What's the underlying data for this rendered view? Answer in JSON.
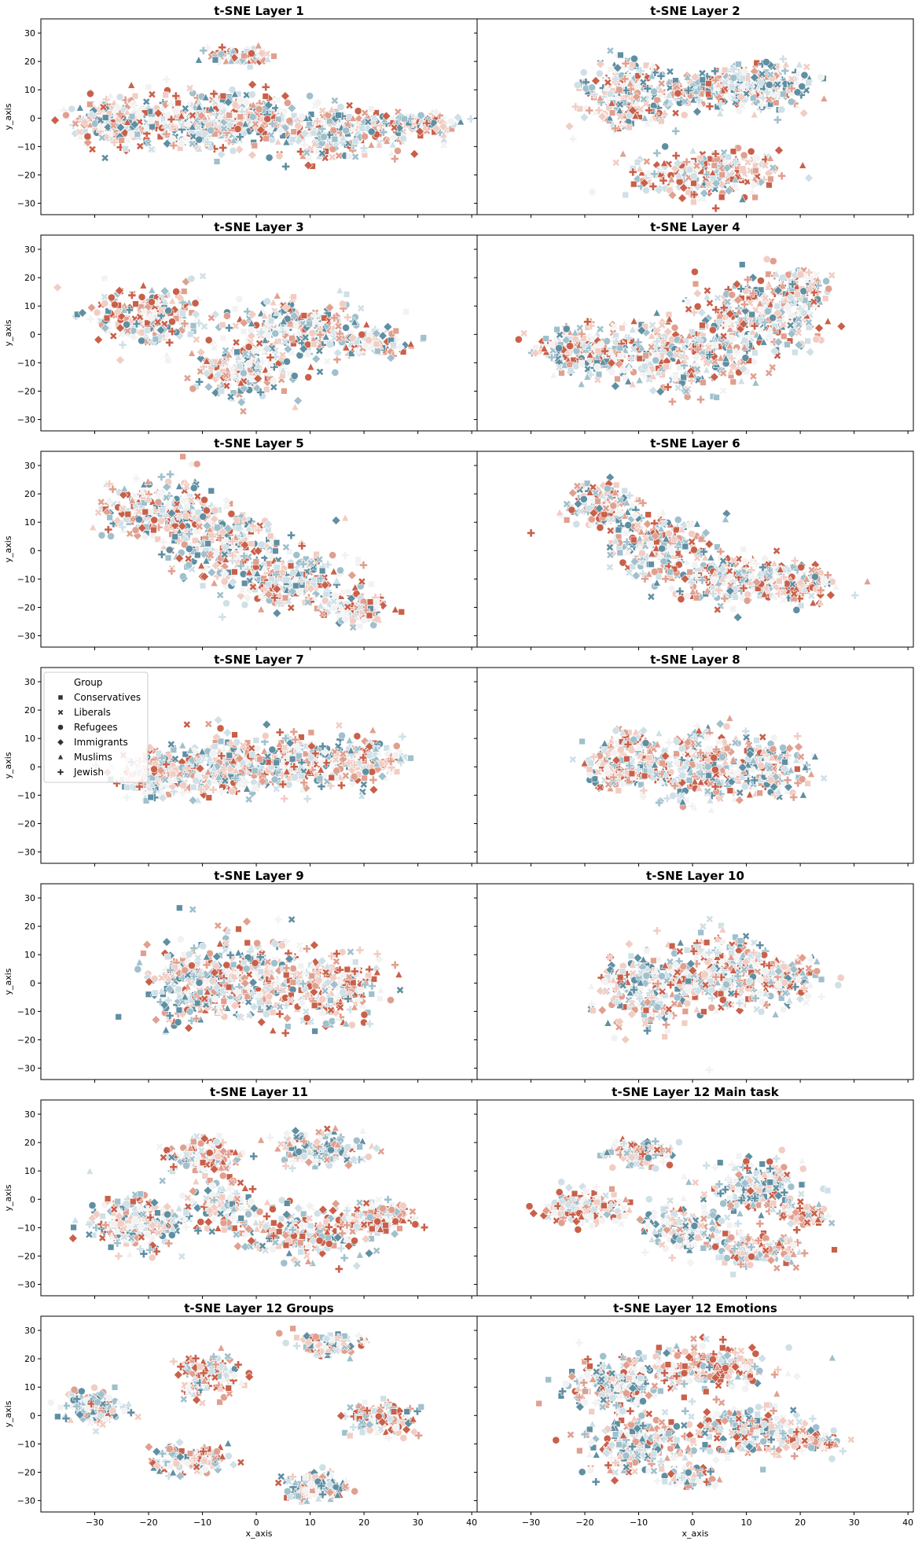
{
  "chart_data": {
    "type": "scatter",
    "layout": {
      "rows": 7,
      "cols": 2,
      "sharex": true,
      "sharey": true
    },
    "xlabel": "x_axis",
    "ylabel": "y_axis",
    "xlim": [
      -40,
      41
    ],
    "ylim": [
      -34,
      35
    ],
    "xticks": [
      -30,
      -20,
      -10,
      0,
      10,
      20,
      30,
      40
    ],
    "yticks": [
      -30,
      -20,
      -10,
      0,
      10,
      20,
      30
    ],
    "palette": [
      "#5f8fa2",
      "#9fc0cc",
      "#cfe0e7",
      "#f2f2f2",
      "#f1cdc3",
      "#e0a090",
      "#c9604a"
    ],
    "legend": {
      "title": "Group",
      "location": "upper-left",
      "panel_index": 6,
      "entries": [
        {
          "label": "Conservatives",
          "marker": "square"
        },
        {
          "label": "Liberals",
          "marker": "x"
        },
        {
          "label": "Refugees",
          "marker": "circle"
        },
        {
          "label": "Immigrants",
          "marker": "diamond"
        },
        {
          "label": "Muslims",
          "marker": "triangle"
        },
        {
          "label": "Jewish",
          "marker": "plus"
        }
      ]
    },
    "panels": [
      {
        "title": "t-SNE Layer 1",
        "clusters": [
          {
            "cx": -25,
            "cy": -1,
            "rx": 10,
            "ry": 8,
            "n": 240,
            "tone": 0
          },
          {
            "cx": -10,
            "cy": -2,
            "rx": 10,
            "ry": 10,
            "n": 260,
            "tone": 0
          },
          {
            "cx": 0,
            "cy": 0,
            "rx": 8,
            "ry": 9,
            "n": 180,
            "tone": 0
          },
          {
            "cx": 15,
            "cy": -5,
            "rx": 12,
            "ry": 9,
            "n": 260,
            "tone": 0
          },
          {
            "cx": 30,
            "cy": -2,
            "rx": 8,
            "ry": 4,
            "n": 90,
            "tone": 0
          },
          {
            "cx": -3,
            "cy": 22,
            "rx": 6,
            "ry": 2.5,
            "n": 70,
            "tone": 0.2
          }
        ]
      },
      {
        "title": "t-SNE Layer 2",
        "clusters": [
          {
            "cx": -12,
            "cy": 8,
            "rx": 9,
            "ry": 11,
            "n": 230,
            "tone": 0
          },
          {
            "cx": 3,
            "cy": 10,
            "rx": 10,
            "ry": 7,
            "n": 200,
            "tone": 0
          },
          {
            "cx": 14,
            "cy": 12,
            "rx": 8,
            "ry": 8,
            "n": 170,
            "tone": -0.2
          },
          {
            "cx": 3,
            "cy": -20,
            "rx": 13,
            "ry": 8,
            "n": 260,
            "tone": 0.3
          }
        ]
      },
      {
        "title": "t-SNE Layer 3",
        "clusters": [
          {
            "cx": -20,
            "cy": 6,
            "rx": 10,
            "ry": 10,
            "n": 260,
            "tone": 0.1
          },
          {
            "cx": -3,
            "cy": -13,
            "rx": 9,
            "ry": 10,
            "n": 200,
            "tone": 0
          },
          {
            "cx": 8,
            "cy": 2,
            "rx": 12,
            "ry": 10,
            "n": 260,
            "tone": -0.1
          },
          {
            "cx": 22,
            "cy": -3,
            "rx": 6,
            "ry": 5,
            "n": 90,
            "tone": 0
          }
        ]
      },
      {
        "title": "t-SNE Layer 4",
        "clusters": [
          {
            "cx": -20,
            "cy": -6,
            "rx": 10,
            "ry": 8,
            "n": 220,
            "tone": 0
          },
          {
            "cx": -2,
            "cy": -8,
            "rx": 12,
            "ry": 13,
            "n": 280,
            "tone": 0
          },
          {
            "cx": 12,
            "cy": 6,
            "rx": 11,
            "ry": 15,
            "n": 300,
            "tone": 0
          },
          {
            "cx": 20,
            "cy": 16,
            "rx": 5,
            "ry": 8,
            "n": 90,
            "tone": 0
          }
        ]
      },
      {
        "title": "t-SNE Layer 5",
        "clusters": [
          {
            "cx": -18,
            "cy": 14,
            "rx": 10,
            "ry": 10,
            "n": 250,
            "tone": 0
          },
          {
            "cx": -6,
            "cy": 3,
            "rx": 11,
            "ry": 12,
            "n": 260,
            "tone": 0
          },
          {
            "cx": 6,
            "cy": -10,
            "rx": 11,
            "ry": 10,
            "n": 250,
            "tone": 0
          },
          {
            "cx": 18,
            "cy": -21,
            "rx": 7,
            "ry": 5,
            "n": 110,
            "tone": 0.2
          }
        ]
      },
      {
        "title": "t-SNE Layer 6",
        "clusters": [
          {
            "cx": -17,
            "cy": 16,
            "rx": 6,
            "ry": 8,
            "n": 150,
            "tone": 0.1
          },
          {
            "cx": -6,
            "cy": 2,
            "rx": 10,
            "ry": 11,
            "n": 240,
            "tone": 0
          },
          {
            "cx": 8,
            "cy": -10,
            "rx": 11,
            "ry": 8,
            "n": 230,
            "tone": 0
          },
          {
            "cx": 20,
            "cy": -12,
            "rx": 7,
            "ry": 6,
            "n": 140,
            "tone": 0.1
          }
        ]
      },
      {
        "title": "t-SNE Layer 7",
        "clusters": [
          {
            "cx": -18,
            "cy": -3,
            "rx": 8,
            "ry": 8,
            "n": 200,
            "tone": 0
          },
          {
            "cx": -5,
            "cy": 0,
            "rx": 10,
            "ry": 10,
            "n": 260,
            "tone": 0
          },
          {
            "cx": 8,
            "cy": 1,
            "rx": 10,
            "ry": 10,
            "n": 240,
            "tone": 0
          },
          {
            "cx": 20,
            "cy": 3,
            "rx": 7,
            "ry": 7,
            "n": 140,
            "tone": 0
          }
        ]
      },
      {
        "title": "t-SNE Layer 8",
        "clusters": [
          {
            "cx": -12,
            "cy": 2,
            "rx": 8,
            "ry": 10,
            "n": 200,
            "tone": 0.2
          },
          {
            "cx": 2,
            "cy": 0,
            "rx": 10,
            "ry": 12,
            "n": 260,
            "tone": 0
          },
          {
            "cx": 14,
            "cy": -1,
            "rx": 7,
            "ry": 9,
            "n": 160,
            "tone": -0.2
          }
        ]
      },
      {
        "title": "t-SNE Layer 9",
        "clusters": [
          {
            "cx": -12,
            "cy": 0,
            "rx": 8,
            "ry": 14,
            "n": 220,
            "tone": -0.2
          },
          {
            "cx": 0,
            "cy": 2,
            "rx": 10,
            "ry": 15,
            "n": 260,
            "tone": 0
          },
          {
            "cx": 14,
            "cy": -2,
            "rx": 9,
            "ry": 11,
            "n": 220,
            "tone": 0.3
          }
        ]
      },
      {
        "title": "t-SNE Layer 10",
        "clusters": [
          {
            "cx": -8,
            "cy": -2,
            "rx": 10,
            "ry": 14,
            "n": 240,
            "tone": 0
          },
          {
            "cx": 6,
            "cy": 3,
            "rx": 10,
            "ry": 14,
            "n": 260,
            "tone": 0.2
          },
          {
            "cx": 17,
            "cy": 2,
            "rx": 8,
            "ry": 8,
            "n": 160,
            "tone": 0.1
          }
        ]
      },
      {
        "title": "t-SNE Layer 11",
        "clusters": [
          {
            "cx": -22,
            "cy": -8,
            "rx": 9,
            "ry": 10,
            "n": 230,
            "tone": -0.1
          },
          {
            "cx": -10,
            "cy": 15,
            "rx": 7,
            "ry": 6,
            "n": 150,
            "tone": 0.4
          },
          {
            "cx": 12,
            "cy": 18,
            "rx": 8,
            "ry": 6,
            "n": 150,
            "tone": -0.2
          },
          {
            "cx": 8,
            "cy": -12,
            "rx": 10,
            "ry": 9,
            "n": 200,
            "tone": 0
          },
          {
            "cx": 22,
            "cy": -7,
            "rx": 8,
            "ry": 5,
            "n": 160,
            "tone": 0.3
          },
          {
            "cx": -6,
            "cy": -2,
            "rx": 6,
            "ry": 8,
            "n": 120,
            "tone": 0
          }
        ]
      },
      {
        "title": "t-SNE Layer 12 Main task",
        "clusters": [
          {
            "cx": -20,
            "cy": -3,
            "rx": 7,
            "ry": 6,
            "n": 180,
            "tone": 0.4
          },
          {
            "cx": -10,
            "cy": 16,
            "rx": 6,
            "ry": 4,
            "n": 110,
            "tone": 0.1
          },
          {
            "cx": -2,
            "cy": -10,
            "rx": 8,
            "ry": 8,
            "n": 160,
            "tone": -0.3
          },
          {
            "cx": 12,
            "cy": 4,
            "rx": 9,
            "ry": 9,
            "n": 200,
            "tone": -0.1
          },
          {
            "cx": 12,
            "cy": -18,
            "rx": 8,
            "ry": 5,
            "n": 150,
            "tone": 0.3
          },
          {
            "cx": 21,
            "cy": -6,
            "rx": 4,
            "ry": 4,
            "n": 80,
            "tone": 0.4
          }
        ]
      },
      {
        "title": "t-SNE Layer 12 Groups",
        "clusters": [
          {
            "cx": -30,
            "cy": 3,
            "rx": 6,
            "ry": 6,
            "n": 150,
            "tone": -0.2
          },
          {
            "cx": -9,
            "cy": 14,
            "rx": 6,
            "ry": 7,
            "n": 130,
            "tone": 0.4
          },
          {
            "cx": 13,
            "cy": 25,
            "rx": 6,
            "ry": 4,
            "n": 90,
            "tone": 0
          },
          {
            "cx": -12,
            "cy": -16,
            "rx": 7,
            "ry": 5,
            "n": 130,
            "tone": 0.1
          },
          {
            "cx": 11,
            "cy": -25,
            "rx": 6,
            "ry": 5,
            "n": 120,
            "tone": -0.3
          },
          {
            "cx": 23,
            "cy": -1,
            "rx": 6,
            "ry": 6,
            "n": 120,
            "tone": 0.2
          }
        ]
      },
      {
        "title": "t-SNE Layer 12 Emotions",
        "clusters": [
          {
            "cx": -15,
            "cy": 10,
            "rx": 9,
            "ry": 10,
            "n": 200,
            "tone": -0.1
          },
          {
            "cx": 3,
            "cy": 17,
            "rx": 12,
            "ry": 8,
            "n": 220,
            "tone": 0.3
          },
          {
            "cx": -10,
            "cy": -10,
            "rx": 10,
            "ry": 10,
            "n": 220,
            "tone": -0.1
          },
          {
            "cx": 10,
            "cy": -5,
            "rx": 10,
            "ry": 9,
            "n": 200,
            "tone": 0
          },
          {
            "cx": 22,
            "cy": -8,
            "rx": 6,
            "ry": 4,
            "n": 100,
            "tone": 0.4
          },
          {
            "cx": 0,
            "cy": -22,
            "rx": 6,
            "ry": 3,
            "n": 60,
            "tone": -0.3
          }
        ]
      }
    ]
  }
}
